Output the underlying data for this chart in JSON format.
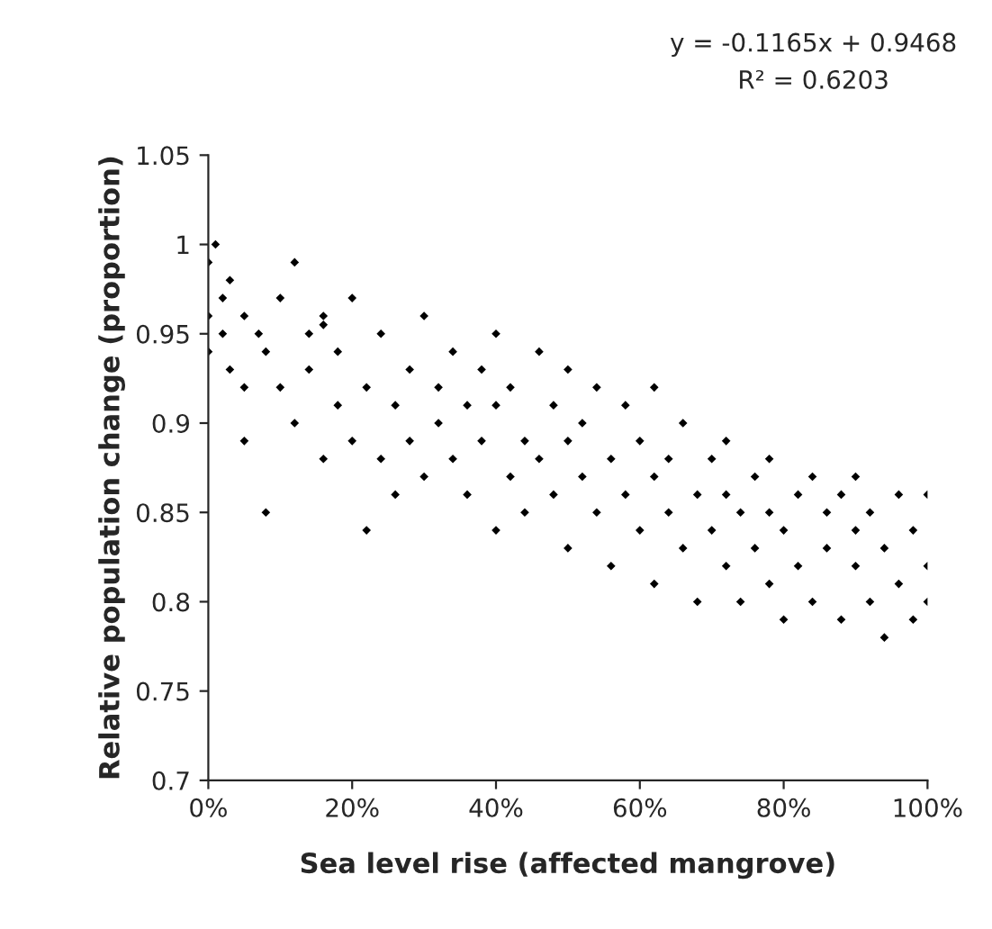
{
  "chart_data": {
    "type": "scatter",
    "xlabel": "Sea level rise (affected mangrove)",
    "ylabel": "Relative population change (proportion)",
    "annotations": [
      "y = -0.1165x + 0.9468",
      "R² = 0.6203"
    ],
    "xlim": [
      0,
      1
    ],
    "xticks": [
      {
        "value": 0,
        "label": "0%"
      },
      {
        "value": 0.2,
        "label": "20%"
      },
      {
        "value": 0.4,
        "label": "40%"
      },
      {
        "value": 0.6,
        "label": "60%"
      },
      {
        "value": 0.8,
        "label": "80%"
      },
      {
        "value": 1,
        "label": "100%"
      }
    ],
    "ylim": [
      0.7,
      1.05
    ],
    "yticks": [
      0.7,
      0.75,
      0.8,
      0.85,
      0.9,
      0.95,
      1,
      1.05
    ],
    "grid": false,
    "marker": "diamond",
    "series": [
      {
        "color": "#000000",
        "x": [
          0,
          0,
          0,
          0.01,
          0.02,
          0.02,
          0.03,
          0.03,
          0.05,
          0.05,
          0.05,
          0.07,
          0.08,
          0.08,
          0.1,
          0.1,
          0.12,
          0.12,
          0.14,
          0.14,
          0.16,
          0.16,
          0.16,
          0.18,
          0.18,
          0.2,
          0.2,
          0.22,
          0.22,
          0.24,
          0.24,
          0.26,
          0.26,
          0.28,
          0.28,
          0.3,
          0.3,
          0.32,
          0.32,
          0.34,
          0.34,
          0.36,
          0.36,
          0.38,
          0.38,
          0.4,
          0.4,
          0.4,
          0.42,
          0.42,
          0.44,
          0.44,
          0.46,
          0.46,
          0.48,
          0.48,
          0.5,
          0.5,
          0.5,
          0.52,
          0.52,
          0.54,
          0.54,
          0.56,
          0.56,
          0.58,
          0.58,
          0.6,
          0.6,
          0.62,
          0.62,
          0.62,
          0.64,
          0.64,
          0.66,
          0.66,
          0.68,
          0.68,
          0.7,
          0.7,
          0.72,
          0.72,
          0.72,
          0.74,
          0.74,
          0.76,
          0.76,
          0.78,
          0.78,
          0.78,
          0.8,
          0.8,
          0.82,
          0.82,
          0.84,
          0.84,
          0.86,
          0.86,
          0.88,
          0.88,
          0.9,
          0.9,
          0.9,
          0.92,
          0.92,
          0.94,
          0.94,
          0.96,
          0.96,
          0.98,
          0.98,
          1,
          1,
          1
        ],
        "values": [
          0.99,
          0.96,
          0.94,
          1.0,
          0.97,
          0.95,
          0.93,
          0.98,
          0.96,
          0.92,
          0.89,
          0.95,
          0.85,
          0.94,
          0.97,
          0.92,
          0.99,
          0.9,
          0.95,
          0.93,
          0.955,
          0.96,
          0.88,
          0.91,
          0.94,
          0.97,
          0.89,
          0.84,
          0.92,
          0.88,
          0.95,
          0.91,
          0.86,
          0.93,
          0.89,
          0.96,
          0.87,
          0.9,
          0.92,
          0.88,
          0.94,
          0.86,
          0.91,
          0.93,
          0.89,
          0.84,
          0.91,
          0.95,
          0.87,
          0.92,
          0.89,
          0.85,
          0.94,
          0.88,
          0.91,
          0.86,
          0.83,
          0.89,
          0.93,
          0.87,
          0.9,
          0.85,
          0.92,
          0.88,
          0.82,
          0.91,
          0.86,
          0.84,
          0.89,
          0.87,
          0.81,
          0.92,
          0.85,
          0.88,
          0.83,
          0.9,
          0.86,
          0.8,
          0.88,
          0.84,
          0.89,
          0.82,
          0.86,
          0.85,
          0.8,
          0.87,
          0.83,
          0.81,
          0.85,
          0.88,
          0.79,
          0.84,
          0.86,
          0.82,
          0.8,
          0.87,
          0.83,
          0.85,
          0.79,
          0.86,
          0.82,
          0.84,
          0.87,
          0.8,
          0.85,
          0.78,
          0.83,
          0.86,
          0.81,
          0.79,
          0.84,
          0.8,
          0.82,
          0.86
        ]
      }
    ]
  }
}
